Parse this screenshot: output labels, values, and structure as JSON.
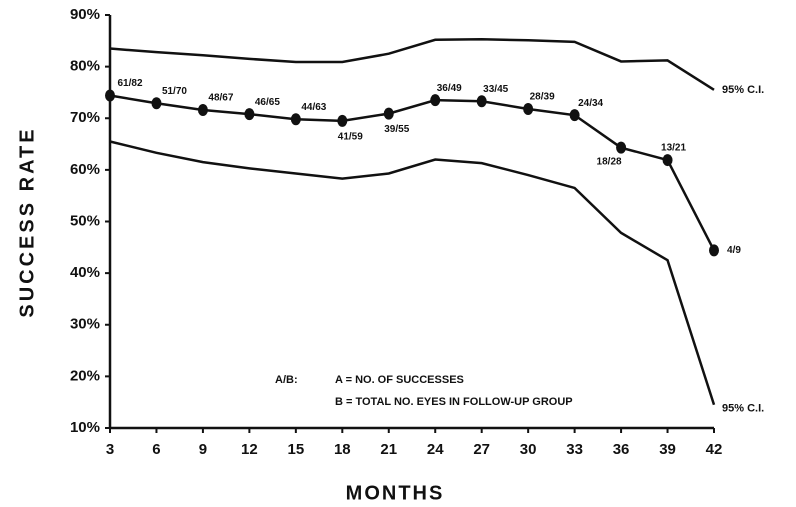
{
  "chart_data": {
    "type": "line",
    "x_label": "MONTHS",
    "y_label": "SUCCESS RATE",
    "x": [
      3,
      6,
      9,
      12,
      15,
      18,
      21,
      24,
      27,
      30,
      33,
      36,
      39,
      42
    ],
    "xlim": [
      3,
      42
    ],
    "xticks": [
      3,
      6,
      9,
      12,
      15,
      18,
      21,
      24,
      27,
      30,
      33,
      36,
      39,
      42
    ],
    "ylim": [
      10,
      90
    ],
    "yticks": [
      {
        "value": 10,
        "label": "10%"
      },
      {
        "value": 20,
        "label": "20%"
      },
      {
        "value": 30,
        "label": "30%"
      },
      {
        "value": 40,
        "label": "40%"
      },
      {
        "value": 50,
        "label": "50%"
      },
      {
        "value": 60,
        "label": "60%"
      },
      {
        "value": 70,
        "label": "70%"
      },
      {
        "value": 80,
        "label": "80%"
      },
      {
        "value": 90,
        "label": "90%"
      }
    ],
    "series": [
      {
        "color": "#111111",
        "markers": true,
        "values": [
          74.4,
          72.9,
          71.6,
          70.8,
          69.8,
          69.5,
          70.9,
          73.5,
          73.3,
          71.8,
          70.6,
          64.3,
          61.9,
          44.4
        ],
        "point_labels": [
          "61/82",
          "51/70",
          "48/67",
          "46/65",
          "44/63",
          "41/59",
          "39/55",
          "36/49",
          "33/45",
          "28/39",
          "24/34",
          "18/28",
          "13/21",
          "4/9"
        ]
      },
      {
        "name": "95% C.I.",
        "color": "#111111",
        "markers": false,
        "values": [
          83.5,
          82.8,
          82.2,
          81.5,
          80.9,
          80.9,
          82.5,
          85.2,
          85.3,
          85.1,
          84.8,
          81.0,
          81.2,
          75.5
        ]
      },
      {
        "name": "95% C.I.",
        "color": "#111111",
        "markers": false,
        "values": [
          65.5,
          63.3,
          61.5,
          60.3,
          59.3,
          58.3,
          59.3,
          62.0,
          61.3,
          59.0,
          56.5,
          47.8,
          42.5,
          14.5
        ]
      }
    ],
    "annotations": [
      "A/B:",
      "A = NO. OF SUCCESSES",
      "B = TOTAL NO. EYES IN FOLLOW-UP GROUP"
    ]
  }
}
